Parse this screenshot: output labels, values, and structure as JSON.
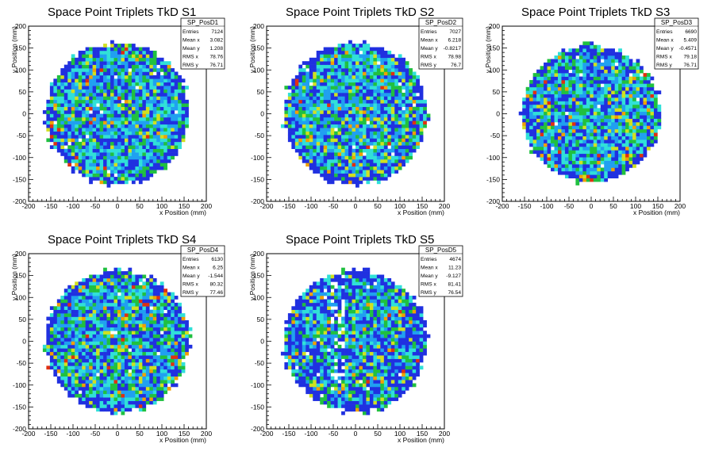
{
  "chart_data": [
    {
      "type": "heatmap",
      "title": "Space Point Triplets TkD S1",
      "xlabel": "x Position (mm)",
      "ylabel": "y Position (mm)",
      "xlim": [
        -200,
        200
      ],
      "ylim": [
        -200,
        200
      ],
      "x_ticks": [
        -200,
        -150,
        -100,
        -50,
        0,
        50,
        100,
        150,
        200
      ],
      "y_ticks": [
        -200,
        -150,
        -100,
        -50,
        0,
        50,
        100,
        150,
        200
      ],
      "grid": false,
      "distribution": {
        "shape": "disk",
        "radius_mm": 160,
        "bin_width_mm": 8,
        "color_levels": [
          "#2030e0",
          "#20a0f0",
          "#30e0d8",
          "#20c040",
          "#d0e020",
          "#f0a000",
          "#e03010"
        ]
      },
      "stats": {
        "name": "SP_PosD1",
        "rows": [
          {
            "label": "Entries",
            "value": "7124"
          },
          {
            "label": "Mean x",
            "value": "3.082"
          },
          {
            "label": "Mean y",
            "value": "1.208"
          },
          {
            "label": "RMS x",
            "value": "78.76"
          },
          {
            "label": "RMS y",
            "value": "76.71"
          }
        ]
      }
    },
    {
      "type": "heatmap",
      "title": "Space Point Triplets TkD S2",
      "xlabel": "x Position (mm)",
      "ylabel": "y Position (mm)",
      "xlim": [
        -200,
        200
      ],
      "ylim": [
        -200,
        200
      ],
      "x_ticks": [
        -200,
        -150,
        -100,
        -50,
        0,
        50,
        100,
        150,
        200
      ],
      "y_ticks": [
        -200,
        -150,
        -100,
        -50,
        0,
        50,
        100,
        150,
        200
      ],
      "grid": false,
      "distribution": {
        "shape": "disk",
        "radius_mm": 160,
        "bin_width_mm": 8,
        "color_levels": [
          "#2030e0",
          "#20a0f0",
          "#30e0d8",
          "#20c040",
          "#d0e020",
          "#f0a000",
          "#e03010"
        ]
      },
      "stats": {
        "name": "SP_PosD2",
        "rows": [
          {
            "label": "Entries",
            "value": "7027"
          },
          {
            "label": "Mean x",
            "value": "6.218"
          },
          {
            "label": "Mean y",
            "value": "-0.8217"
          },
          {
            "label": "RMS x",
            "value": "78.98"
          },
          {
            "label": "RMS y",
            "value": "76.7"
          }
        ]
      }
    },
    {
      "type": "heatmap",
      "title": "Space Point Triplets TkD S3",
      "xlabel": "x Position (mm)",
      "ylabel": "y Position (mm)",
      "xlim": [
        -200,
        200
      ],
      "ylim": [
        -200,
        200
      ],
      "x_ticks": [
        -200,
        -150,
        -100,
        -50,
        0,
        50,
        100,
        150,
        200
      ],
      "y_ticks": [
        -200,
        -150,
        -100,
        -50,
        0,
        50,
        100,
        150,
        200
      ],
      "grid": false,
      "distribution": {
        "shape": "disk",
        "radius_mm": 155,
        "bin_width_mm": 8,
        "color_levels": [
          "#2030e0",
          "#20a0f0",
          "#30e0d8",
          "#20c040",
          "#d0e020",
          "#f0a000",
          "#e03010"
        ]
      },
      "stats": {
        "name": "SP_PosD3",
        "rows": [
          {
            "label": "Entries",
            "value": "6690"
          },
          {
            "label": "Mean x",
            "value": "5.409"
          },
          {
            "label": "Mean y",
            "value": "-0.4571"
          },
          {
            "label": "RMS x",
            "value": "79.18"
          },
          {
            "label": "RMS y",
            "value": "76.71"
          }
        ]
      }
    },
    {
      "type": "heatmap",
      "title": "Space Point Triplets TkD S4",
      "xlabel": "x Position (mm)",
      "ylabel": "y Position (mm)",
      "xlim": [
        -200,
        200
      ],
      "ylim": [
        -200,
        200
      ],
      "x_ticks": [
        -200,
        -150,
        -100,
        -50,
        0,
        50,
        100,
        150,
        200
      ],
      "y_ticks": [
        -200,
        -150,
        -100,
        -50,
        0,
        50,
        100,
        150,
        200
      ],
      "grid": false,
      "distribution": {
        "shape": "disk",
        "radius_mm": 160,
        "bin_width_mm": 8,
        "color_levels": [
          "#2030e0",
          "#20a0f0",
          "#30e0d8",
          "#20c040",
          "#d0e020",
          "#f0a000",
          "#e03010"
        ]
      },
      "stats": {
        "name": "SP_PosD4",
        "rows": [
          {
            "label": "Entries",
            "value": "6130"
          },
          {
            "label": "Mean x",
            "value": "6.25"
          },
          {
            "label": "Mean y",
            "value": "-1.544"
          },
          {
            "label": "RMS x",
            "value": "80.32"
          },
          {
            "label": "RMS y",
            "value": "77.46"
          }
        ]
      }
    },
    {
      "type": "heatmap",
      "title": "Space Point Triplets TkD S5",
      "xlabel": "x Position (mm)",
      "ylabel": "y Position (mm)",
      "xlim": [
        -200,
        200
      ],
      "ylim": [
        -200,
        200
      ],
      "x_ticks": [
        -200,
        -150,
        -100,
        -50,
        0,
        50,
        100,
        150,
        200
      ],
      "y_ticks": [
        -200,
        -150,
        -100,
        -50,
        0,
        50,
        100,
        150,
        200
      ],
      "grid": false,
      "distribution": {
        "shape": "disk",
        "radius_mm": 160,
        "bin_width_mm": 8,
        "color_levels": [
          "#2030e0",
          "#20a0f0",
          "#30e0d8",
          "#20c040",
          "#d0e020",
          "#f0a000",
          "#e03010"
        ]
      },
      "stats": {
        "name": "SP_PosD5",
        "rows": [
          {
            "label": "Entries",
            "value": "4674"
          },
          {
            "label": "Mean x",
            "value": "11.23"
          },
          {
            "label": "Mean y",
            "value": "-9.127"
          },
          {
            "label": "RMS x",
            "value": "81.41"
          },
          {
            "label": "RMS y",
            "value": "76.54"
          }
        ]
      }
    }
  ]
}
